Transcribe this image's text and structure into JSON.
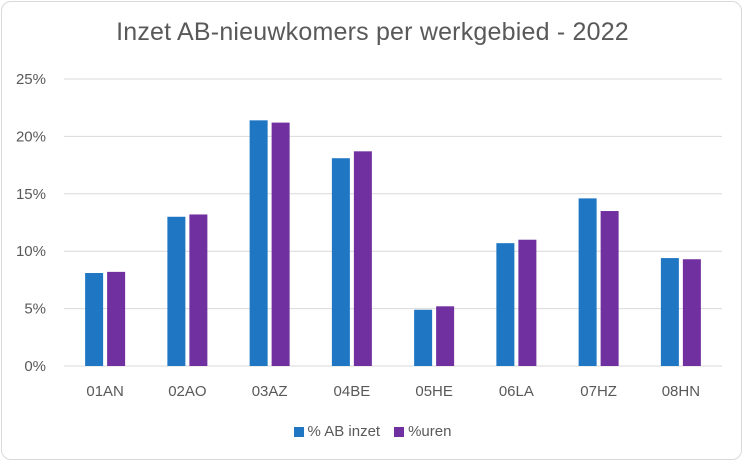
{
  "chart_data": {
    "type": "bar",
    "title": "Inzet AB-nieuwkomers per werkgebied - 2022",
    "categories": [
      "01AN",
      "02AO",
      "03AZ",
      "04BE",
      "05HE",
      "06LA",
      "07HZ",
      "08HN"
    ],
    "series": [
      {
        "name": "% AB inzet",
        "color": "#1f77c4",
        "values": [
          8.1,
          13.0,
          21.4,
          18.1,
          4.9,
          10.7,
          14.6,
          9.4
        ]
      },
      {
        "name": "%uren",
        "color": "#7030a0",
        "values": [
          8.2,
          13.2,
          21.2,
          18.7,
          5.2,
          11.0,
          13.5,
          9.3
        ]
      }
    ],
    "ylim": [
      0,
      25
    ],
    "yticks": [
      "0%",
      "5%",
      "10%",
      "15%",
      "20%",
      "25%"
    ],
    "grid": true,
    "legend": "bottom"
  }
}
